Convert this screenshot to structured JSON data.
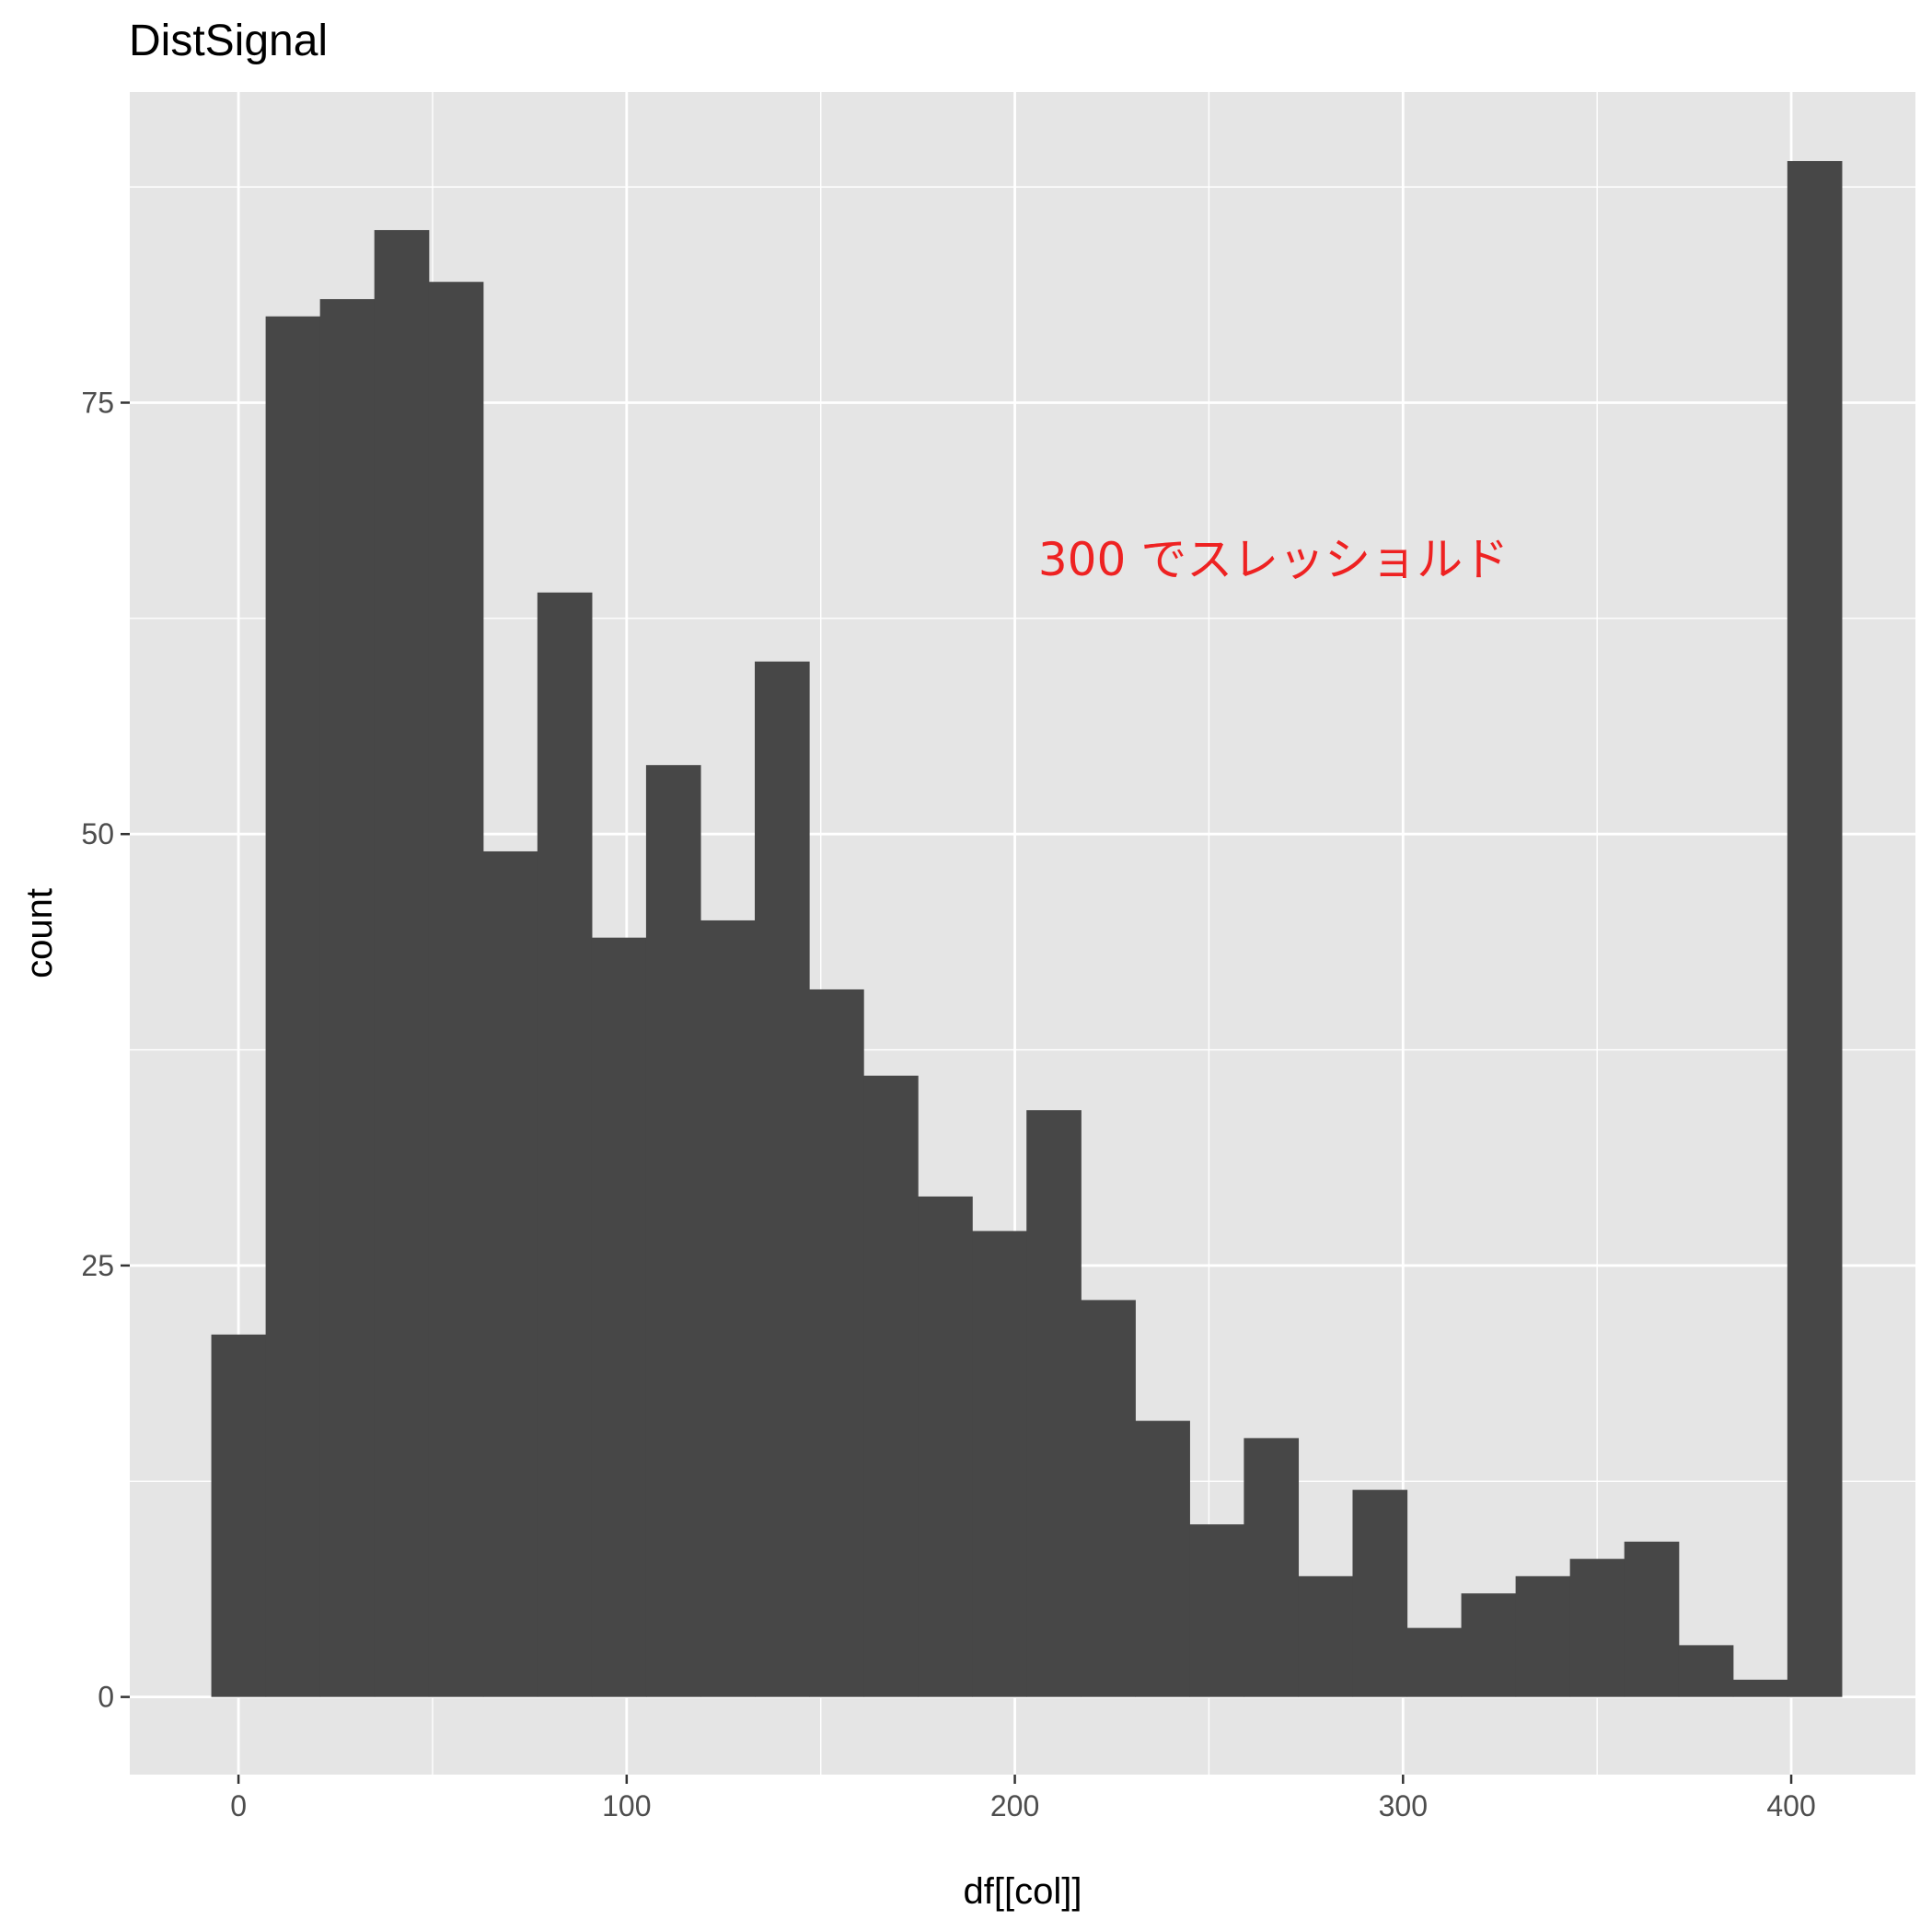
{
  "chart_data": {
    "type": "bar",
    "title": "DistSignal",
    "xlabel": "df[[col]]",
    "ylabel": "count",
    "xlim": [
      -28,
      432
    ],
    "ylim": [
      -4.5,
      93
    ],
    "x_ticks": [
      0,
      100,
      200,
      300,
      400
    ],
    "x_tick_labels": [
      "0",
      "100",
      "200",
      "300",
      "400"
    ],
    "y_ticks": [
      0,
      25,
      50,
      75
    ],
    "y_tick_labels": [
      "0",
      "25",
      "50",
      "75"
    ],
    "grid": true,
    "bin_edges": [
      -7,
      7,
      21,
      35,
      49,
      63,
      77,
      91,
      105,
      119,
      133,
      147,
      161,
      175,
      189,
      203,
      217,
      231,
      245,
      259,
      273,
      287,
      301,
      315,
      329,
      343,
      357,
      371,
      385,
      399,
      413
    ],
    "values": [
      21,
      80,
      81,
      85,
      82,
      49,
      64,
      44,
      54,
      45,
      60,
      41,
      36,
      29,
      27,
      34,
      23,
      16,
      10,
      15,
      7,
      12,
      4,
      6,
      7,
      8,
      9,
      3,
      1,
      89
    ],
    "bar_color": "#474747",
    "panel_background": "#e5e5e5",
    "grid_color": "#ffffff",
    "annotation": {
      "text": "300 でスレッショルド",
      "x": 206,
      "y": 65,
      "color": "#ee2222"
    }
  }
}
